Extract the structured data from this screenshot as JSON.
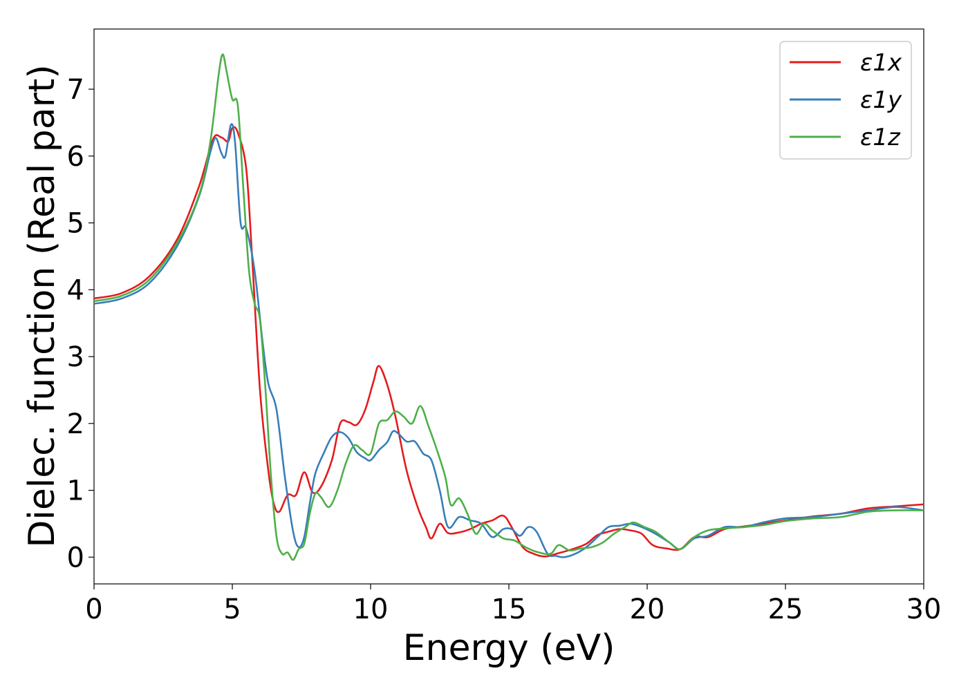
{
  "chart_data": {
    "type": "line",
    "xlabel": "Energy (eV)",
    "ylabel": "Dielec. function (Real part)",
    "xlim": [
      0,
      30
    ],
    "ylim": [
      -0.4,
      7.9
    ],
    "xticks": [
      0,
      5,
      10,
      15,
      20,
      25,
      30
    ],
    "yticks": [
      0,
      1,
      2,
      3,
      4,
      5,
      6,
      7
    ],
    "grid": false,
    "legend_position": "top-right",
    "series": [
      {
        "name": "ε1x",
        "color": "#e41a1c",
        "points": [
          [
            0,
            3.87
          ],
          [
            1,
            3.95
          ],
          [
            2,
            4.2
          ],
          [
            3,
            4.75
          ],
          [
            3.8,
            5.55
          ],
          [
            4.3,
            6.25
          ],
          [
            4.6,
            6.28
          ],
          [
            4.85,
            6.22
          ],
          [
            5.0,
            6.42
          ],
          [
            5.2,
            6.35
          ],
          [
            5.5,
            5.82
          ],
          [
            5.7,
            4.6
          ],
          [
            6.0,
            2.5
          ],
          [
            6.3,
            1.3
          ],
          [
            6.5,
            0.8
          ],
          [
            6.7,
            0.68
          ],
          [
            7.0,
            0.93
          ],
          [
            7.3,
            0.93
          ],
          [
            7.6,
            1.27
          ],
          [
            7.9,
            0.97
          ],
          [
            8.2,
            1.05
          ],
          [
            8.6,
            1.45
          ],
          [
            8.9,
            2.0
          ],
          [
            9.2,
            2.02
          ],
          [
            9.5,
            1.98
          ],
          [
            9.8,
            2.2
          ],
          [
            10.1,
            2.62
          ],
          [
            10.3,
            2.86
          ],
          [
            10.6,
            2.58
          ],
          [
            10.9,
            2.1
          ],
          [
            11.3,
            1.3
          ],
          [
            11.7,
            0.75
          ],
          [
            12.0,
            0.45
          ],
          [
            12.2,
            0.28
          ],
          [
            12.5,
            0.5
          ],
          [
            12.8,
            0.36
          ],
          [
            13.2,
            0.37
          ],
          [
            13.6,
            0.42
          ],
          [
            14.0,
            0.5
          ],
          [
            14.4,
            0.55
          ],
          [
            14.8,
            0.62
          ],
          [
            15.1,
            0.45
          ],
          [
            15.5,
            0.15
          ],
          [
            15.9,
            0.05
          ],
          [
            16.3,
            0.01
          ],
          [
            16.8,
            0.06
          ],
          [
            17.3,
            0.12
          ],
          [
            17.8,
            0.2
          ],
          [
            18.2,
            0.33
          ],
          [
            18.6,
            0.38
          ],
          [
            19.0,
            0.42
          ],
          [
            19.4,
            0.4
          ],
          [
            19.8,
            0.35
          ],
          [
            20.2,
            0.18
          ],
          [
            20.7,
            0.13
          ],
          [
            21.2,
            0.12
          ],
          [
            21.7,
            0.3
          ],
          [
            22.2,
            0.3
          ],
          [
            22.8,
            0.42
          ],
          [
            23.5,
            0.46
          ],
          [
            24.2,
            0.5
          ],
          [
            25,
            0.55
          ],
          [
            26,
            0.61
          ],
          [
            27,
            0.65
          ],
          [
            28,
            0.73
          ],
          [
            29,
            0.76
          ],
          [
            30,
            0.79
          ]
        ]
      },
      {
        "name": "ε1y",
        "color": "#377eb8",
        "points": [
          [
            0,
            3.79
          ],
          [
            1,
            3.87
          ],
          [
            2,
            4.1
          ],
          [
            3,
            4.65
          ],
          [
            3.8,
            5.4
          ],
          [
            4.2,
            6.05
          ],
          [
            4.4,
            6.27
          ],
          [
            4.6,
            6.05
          ],
          [
            4.75,
            6.0
          ],
          [
            4.95,
            6.47
          ],
          [
            5.1,
            6.2
          ],
          [
            5.3,
            5.0
          ],
          [
            5.5,
            4.92
          ],
          [
            5.8,
            4.3
          ],
          [
            6.1,
            3.2
          ],
          [
            6.3,
            2.6
          ],
          [
            6.6,
            2.2
          ],
          [
            6.9,
            1.2
          ],
          [
            7.2,
            0.38
          ],
          [
            7.4,
            0.15
          ],
          [
            7.6,
            0.3
          ],
          [
            7.8,
            0.8
          ],
          [
            8.0,
            1.25
          ],
          [
            8.3,
            1.55
          ],
          [
            8.6,
            1.8
          ],
          [
            8.9,
            1.87
          ],
          [
            9.2,
            1.78
          ],
          [
            9.5,
            1.57
          ],
          [
            9.8,
            1.48
          ],
          [
            10.0,
            1.45
          ],
          [
            10.3,
            1.6
          ],
          [
            10.6,
            1.72
          ],
          [
            10.8,
            1.88
          ],
          [
            11.0,
            1.85
          ],
          [
            11.3,
            1.73
          ],
          [
            11.6,
            1.73
          ],
          [
            11.9,
            1.55
          ],
          [
            12.2,
            1.45
          ],
          [
            12.5,
            1.0
          ],
          [
            12.8,
            0.45
          ],
          [
            13.2,
            0.6
          ],
          [
            13.6,
            0.55
          ],
          [
            14.0,
            0.5
          ],
          [
            14.4,
            0.3
          ],
          [
            14.8,
            0.42
          ],
          [
            15.1,
            0.42
          ],
          [
            15.4,
            0.32
          ],
          [
            15.7,
            0.45
          ],
          [
            16.0,
            0.38
          ],
          [
            16.4,
            0.05
          ],
          [
            16.7,
            0.02
          ],
          [
            17.0,
            0.0
          ],
          [
            17.4,
            0.05
          ],
          [
            17.8,
            0.15
          ],
          [
            18.2,
            0.3
          ],
          [
            18.6,
            0.45
          ],
          [
            19.0,
            0.47
          ],
          [
            19.4,
            0.5
          ],
          [
            19.8,
            0.45
          ],
          [
            20.3,
            0.35
          ],
          [
            20.8,
            0.22
          ],
          [
            21.2,
            0.12
          ],
          [
            21.7,
            0.28
          ],
          [
            22.2,
            0.32
          ],
          [
            22.8,
            0.45
          ],
          [
            23.5,
            0.45
          ],
          [
            24.2,
            0.52
          ],
          [
            25,
            0.58
          ],
          [
            26,
            0.6
          ],
          [
            27,
            0.65
          ],
          [
            28,
            0.7
          ],
          [
            29,
            0.75
          ],
          [
            30,
            0.7
          ]
        ]
      },
      {
        "name": "ε1z",
        "color": "#4daf4a",
        "points": [
          [
            0,
            3.83
          ],
          [
            1,
            3.91
          ],
          [
            2,
            4.15
          ],
          [
            3,
            4.7
          ],
          [
            3.8,
            5.42
          ],
          [
            4.2,
            6.2
          ],
          [
            4.5,
            7.2
          ],
          [
            4.65,
            7.52
          ],
          [
            4.8,
            7.25
          ],
          [
            5.0,
            6.85
          ],
          [
            5.2,
            6.75
          ],
          [
            5.4,
            5.5
          ],
          [
            5.6,
            4.3
          ],
          [
            5.8,
            3.8
          ],
          [
            6.0,
            3.55
          ],
          [
            6.2,
            2.5
          ],
          [
            6.4,
            1.2
          ],
          [
            6.6,
            0.3
          ],
          [
            6.8,
            0.05
          ],
          [
            7.0,
            0.07
          ],
          [
            7.2,
            -0.04
          ],
          [
            7.4,
            0.12
          ],
          [
            7.6,
            0.2
          ],
          [
            7.8,
            0.65
          ],
          [
            8.0,
            0.95
          ],
          [
            8.2,
            0.9
          ],
          [
            8.5,
            0.75
          ],
          [
            8.8,
            1.0
          ],
          [
            9.1,
            1.4
          ],
          [
            9.4,
            1.67
          ],
          [
            9.7,
            1.6
          ],
          [
            10.0,
            1.55
          ],
          [
            10.3,
            2.0
          ],
          [
            10.6,
            2.05
          ],
          [
            10.9,
            2.18
          ],
          [
            11.2,
            2.1
          ],
          [
            11.5,
            2.0
          ],
          [
            11.8,
            2.26
          ],
          [
            12.1,
            1.95
          ],
          [
            12.4,
            1.6
          ],
          [
            12.7,
            1.2
          ],
          [
            12.9,
            0.78
          ],
          [
            13.2,
            0.88
          ],
          [
            13.5,
            0.65
          ],
          [
            13.8,
            0.35
          ],
          [
            14.1,
            0.5
          ],
          [
            14.4,
            0.4
          ],
          [
            14.8,
            0.28
          ],
          [
            15.2,
            0.25
          ],
          [
            15.6,
            0.15
          ],
          [
            16.0,
            0.08
          ],
          [
            16.5,
            0.05
          ],
          [
            16.8,
            0.18
          ],
          [
            17.2,
            0.1
          ],
          [
            17.6,
            0.13
          ],
          [
            18.0,
            0.15
          ],
          [
            18.4,
            0.22
          ],
          [
            18.8,
            0.35
          ],
          [
            19.2,
            0.45
          ],
          [
            19.5,
            0.52
          ],
          [
            19.9,
            0.45
          ],
          [
            20.3,
            0.38
          ],
          [
            20.8,
            0.22
          ],
          [
            21.2,
            0.12
          ],
          [
            21.7,
            0.3
          ],
          [
            22.2,
            0.4
          ],
          [
            22.8,
            0.43
          ],
          [
            23.5,
            0.45
          ],
          [
            24.2,
            0.48
          ],
          [
            25,
            0.54
          ],
          [
            26,
            0.58
          ],
          [
            27,
            0.6
          ],
          [
            28,
            0.68
          ],
          [
            29,
            0.7
          ],
          [
            30,
            0.7
          ]
        ]
      }
    ]
  }
}
